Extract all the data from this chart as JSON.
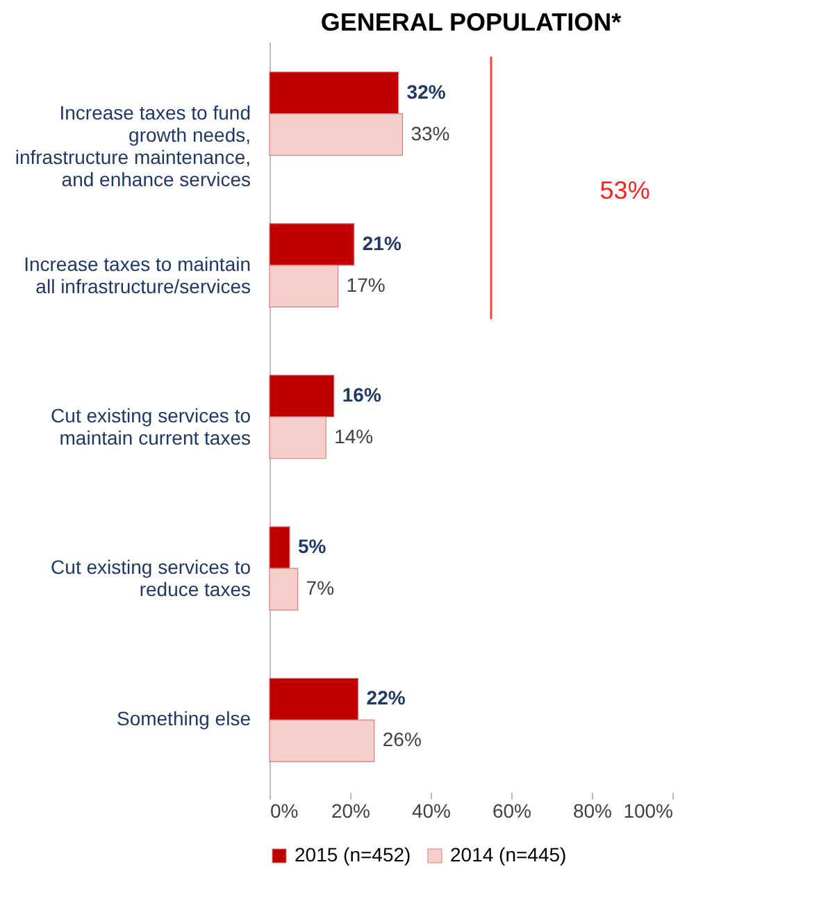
{
  "chart_data": {
    "type": "bar",
    "orientation": "horizontal",
    "title": "GENERAL POPULATION*",
    "categories": [
      "Increase taxes to fund growth needs, infrastructure maintenance, and enhance services",
      "Increase taxes to maintain all infrastructure/services",
      "Cut existing services to maintain current taxes",
      "Cut existing services to reduce taxes",
      "Something else"
    ],
    "series": [
      {
        "name": "2015 (n=452)",
        "color": "#c00000",
        "values": [
          32,
          21,
          16,
          5,
          22
        ],
        "value_labels": [
          "32%",
          "21%",
          "16%",
          "5%",
          "22%"
        ]
      },
      {
        "name": "2014 (n=445)",
        "color": "#f6cfcb",
        "values": [
          33,
          17,
          14,
          7,
          26
        ],
        "value_labels": [
          "33%",
          "17%",
          "14%",
          "7%",
          "26%"
        ]
      }
    ],
    "xlim": [
      0,
      100
    ],
    "xticks": [
      {
        "value": 0,
        "label": "0%"
      },
      {
        "value": 20,
        "label": "20%"
      },
      {
        "value": 40,
        "label": "40%"
      },
      {
        "value": 60,
        "label": "60%"
      },
      {
        "value": 80,
        "label": "80%"
      },
      {
        "value": 100,
        "label": "100%"
      }
    ],
    "grid": false,
    "legend": "bottom",
    "annotations": [
      "53%"
    ]
  }
}
